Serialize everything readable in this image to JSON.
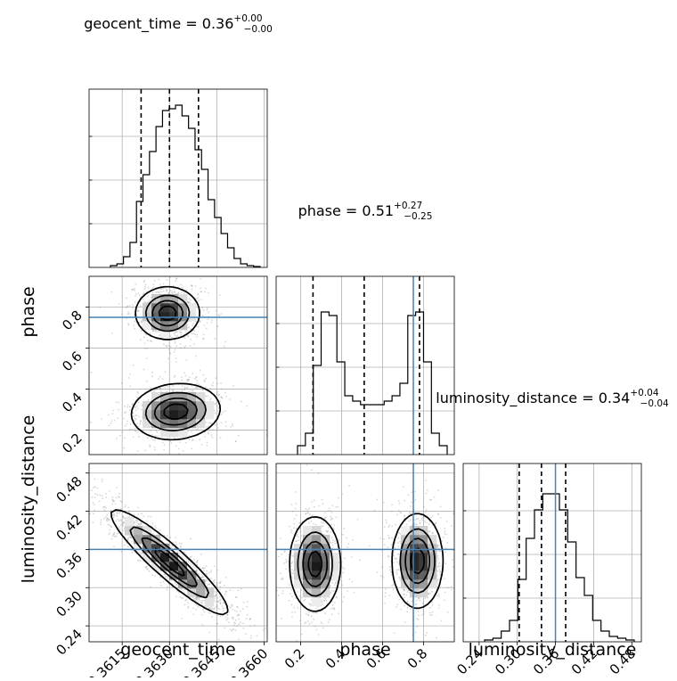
{
  "chart_data": {
    "type": "corner",
    "parameters": [
      "geocent_time",
      "phase",
      "luminosity_distance"
    ],
    "truths": {
      "geocent_time": null,
      "phase": 0.75,
      "luminosity_distance": 0.36
    },
    "truth_color": "#4682b4",
    "titles": [
      {
        "param": "geocent_time",
        "text": "geocent_time = 0.36",
        "sup": "+0.00",
        "sub": "−0.00"
      },
      {
        "param": "phase",
        "text": "phase = 0.51",
        "sup": "+0.27",
        "sub": "−0.25"
      },
      {
        "param": "luminosity_distance",
        "text": "luminosity_distance = 0.34",
        "sup": "+0.04",
        "sub": "−0.04"
      }
    ],
    "axes": {
      "geocent_time": {
        "range": [
          0.36045,
          0.3661
        ],
        "ticks": [
          0.3615,
          0.363,
          0.3645,
          0.366
        ],
        "tick_labels": [
          "0.3615",
          "0.3630",
          "0.3645",
          "0.3660"
        ],
        "label": "geocent_time"
      },
      "phase": {
        "range": [
          0.08,
          0.95
        ],
        "ticks": [
          0.2,
          0.4,
          0.6,
          0.8
        ],
        "tick_labels": [
          "0.2",
          "0.4",
          "0.6",
          "0.8"
        ],
        "label": "phase"
      },
      "luminosity_distance": {
        "range": [
          0.215,
          0.495
        ],
        "ticks": [
          0.24,
          0.3,
          0.36,
          0.42,
          0.48
        ],
        "tick_labels": [
          "0.24",
          "0.30",
          "0.36",
          "0.42",
          "0.48"
        ],
        "label": "luminosity_distance"
      }
    },
    "marginals": [
      {
        "param": "geocent_time",
        "quantiles": [
          0.3621,
          0.363,
          0.36392
        ],
        "hist": [
          0.01,
          0.02,
          0.06,
          0.14,
          0.37,
          0.52,
          0.65,
          0.79,
          0.88,
          0.89,
          0.91,
          0.85,
          0.78,
          0.66,
          0.55,
          0.38,
          0.28,
          0.19,
          0.11,
          0.05,
          0.02,
          0.01,
          0.005
        ]
      },
      {
        "param": "phase",
        "quantiles": [
          0.26,
          0.51,
          0.78
        ],
        "hist": [
          0.05,
          0.12,
          0.5,
          0.8,
          0.78,
          0.52,
          0.33,
          0.3,
          0.28,
          0.28,
          0.28,
          0.3,
          0.33,
          0.4,
          0.78,
          0.8,
          0.52,
          0.12,
          0.05
        ]
      },
      {
        "param": "luminosity_distance",
        "quantiles": [
          0.303,
          0.338,
          0.376
        ],
        "hist": [
          0.01,
          0.02,
          0.06,
          0.12,
          0.35,
          0.58,
          0.74,
          0.83,
          0.83,
          0.74,
          0.56,
          0.36,
          0.26,
          0.12,
          0.06,
          0.03,
          0.02,
          0.01
        ]
      }
    ],
    "joint": [
      {
        "x": "geocent_time",
        "y": "phase",
        "modes": [
          {
            "cx": 0.36294,
            "cy": 0.77,
            "sx": 0.00049,
            "sy": 0.062,
            "rho": 0.0,
            "w": 1.0
          },
          {
            "cx": 0.3632,
            "cy": 0.29,
            "sx": 0.00068,
            "sy": 0.066,
            "rho": 0.1,
            "w": 1.0
          }
        ]
      },
      {
        "x": "geocent_time",
        "y": "luminosity_distance",
        "modes": [
          {
            "cx": 0.363,
            "cy": 0.34,
            "sx": 0.0009,
            "sy": 0.04,
            "rho": -0.92,
            "w": 1.0
          }
        ]
      },
      {
        "x": "phase",
        "y": "luminosity_distance",
        "modes": [
          {
            "cx": 0.27,
            "cy": 0.337,
            "sx": 0.06,
            "sy": 0.036,
            "rho": 0.0,
            "w": 1.0
          },
          {
            "cx": 0.77,
            "cy": 0.342,
            "sx": 0.06,
            "sy": 0.036,
            "rho": 0.0,
            "w": 1.0
          }
        ]
      }
    ]
  }
}
